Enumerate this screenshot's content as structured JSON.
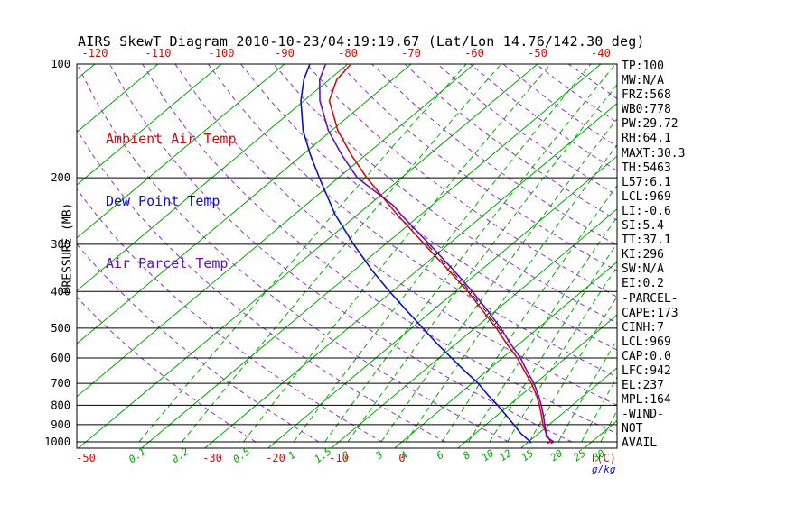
{
  "title": "AIRS SkewT Diagram 2010-10-23/04:19:19.67 (Lat/Lon 14.76/142.30 deg)",
  "legend": {
    "items": [
      {
        "label": "Ambient Air Temp",
        "color": "#cc1111"
      },
      {
        "label": "Dew Point Temp",
        "color": "#1111bb"
      },
      {
        "label": "Air Parcel Temp",
        "color": "#6611bb"
      }
    ]
  },
  "stats": {
    "lines": [
      "TP:100",
      "MW:N/A",
      "FRZ:568",
      "WB0:778",
      "PW:29.72",
      "RH:64.1",
      "MAXT:30.3",
      "TH:5463",
      "L57:6.1",
      "LCL:969",
      "LI:-0.6",
      "SI:5.4",
      "TT:37.1",
      "KI:296",
      "SW:N/A",
      "EI:0.2",
      "-PARCEL-",
      "CAPE:173",
      "CINH:7",
      "LCL:969",
      "CAP:0.0",
      "LFC:942",
      "EL:237",
      "MPL:164",
      "-WIND-",
      "NOT",
      "AVAIL"
    ]
  },
  "chart_data": {
    "type": "line",
    "title": "AIRS SkewT Diagram 2010-10-23/04:19:19.67 (Lat/Lon 14.76/142.30 deg)",
    "y_axis": {
      "label": "PRESSURE (MB)",
      "scale": "log",
      "ticks": [
        100,
        200,
        300,
        400,
        500,
        600,
        700,
        800,
        900,
        1000
      ],
      "range": [
        100,
        1050
      ]
    },
    "x_axis": {
      "label": "T(C)",
      "unit": "C",
      "top_ticks": [
        -120,
        -110,
        -100,
        -90,
        -80,
        -70,
        -60,
        -50,
        -40
      ],
      "bottom_ticks": [
        -50,
        -30,
        -20,
        -10,
        0
      ]
    },
    "mixing_ratio": {
      "label": "g/kg",
      "values": [
        0.1,
        0.2,
        0.5,
        1,
        1.5,
        2,
        3,
        4,
        6,
        8,
        10,
        12,
        15,
        20,
        25,
        30
      ]
    },
    "isotherms_c": {
      "min": -160,
      "max": 40,
      "step": 10
    },
    "dry_adiabats_k": {
      "min": 250,
      "max": 440,
      "step": 10
    },
    "colors": {
      "isotherm": "#00a800",
      "mixing": "#00a800",
      "adiabat": "#8833cc",
      "isobar": "#000000",
      "axis_red": "#cc1111",
      "temperature": "#cc1111",
      "dewpoint": "#1111bb",
      "parcel": "#6611bb"
    },
    "series": [
      {
        "name": "Ambient Air Temp",
        "color": "#cc1111",
        "points": [
          [
            1008,
            23.2
          ],
          [
            1000,
            23.5
          ],
          [
            950,
            21.2
          ],
          [
            900,
            19.0
          ],
          [
            850,
            17.0
          ],
          [
            800,
            14.8
          ],
          [
            750,
            12.3
          ],
          [
            700,
            9.4
          ],
          [
            650,
            6.0
          ],
          [
            600,
            2.4
          ],
          [
            550,
            -2.0
          ],
          [
            500,
            -6.6
          ],
          [
            450,
            -12.0
          ],
          [
            400,
            -18.0
          ],
          [
            350,
            -25.3
          ],
          [
            300,
            -33.8
          ],
          [
            250,
            -43.8
          ],
          [
            200,
            -55.5
          ],
          [
            175,
            -62.0
          ],
          [
            150,
            -69.0
          ],
          [
            125,
            -76.0
          ],
          [
            110,
            -78.8
          ],
          [
            100,
            -79.5
          ]
        ]
      },
      {
        "name": "Dew Point Temp",
        "color": "#1111bb",
        "points": [
          [
            1008,
            20.6
          ],
          [
            1000,
            20.3
          ],
          [
            950,
            17.2
          ],
          [
            900,
            14.4
          ],
          [
            850,
            11.4
          ],
          [
            800,
            8.2
          ],
          [
            750,
            4.6
          ],
          [
            700,
            1.0
          ],
          [
            650,
            -3.4
          ],
          [
            600,
            -8.0
          ],
          [
            550,
            -13.0
          ],
          [
            500,
            -18.2
          ],
          [
            450,
            -24.0
          ],
          [
            400,
            -30.4
          ],
          [
            350,
            -37.4
          ],
          [
            300,
            -45.0
          ],
          [
            250,
            -53.6
          ],
          [
            200,
            -63.0
          ],
          [
            175,
            -68.5
          ],
          [
            150,
            -74.5
          ],
          [
            125,
            -80.5
          ],
          [
            110,
            -84.0
          ],
          [
            100,
            -86.0
          ]
        ]
      },
      {
        "name": "Air Parcel Temp",
        "color": "#6611bb",
        "points": [
          [
            1008,
            23.8
          ],
          [
            1000,
            24.0
          ],
          [
            969,
            21.8
          ],
          [
            950,
            21.2
          ],
          [
            900,
            19.3
          ],
          [
            850,
            17.3
          ],
          [
            800,
            15.1
          ],
          [
            750,
            12.6
          ],
          [
            700,
            9.8
          ],
          [
            650,
            6.4
          ],
          [
            600,
            2.9
          ],
          [
            550,
            -1.4
          ],
          [
            500,
            -5.9
          ],
          [
            450,
            -11.2
          ],
          [
            400,
            -17.3
          ],
          [
            350,
            -24.5
          ],
          [
            300,
            -33.0
          ],
          [
            250,
            -43.2
          ],
          [
            237,
            -46.0
          ],
          [
            200,
            -57.0
          ],
          [
            175,
            -63.5
          ],
          [
            150,
            -70.5
          ],
          [
            125,
            -77.5
          ],
          [
            110,
            -81.5
          ],
          [
            100,
            -83.5
          ]
        ]
      }
    ],
    "cape_hatch_pressure_range": [
      515,
      300
    ]
  }
}
